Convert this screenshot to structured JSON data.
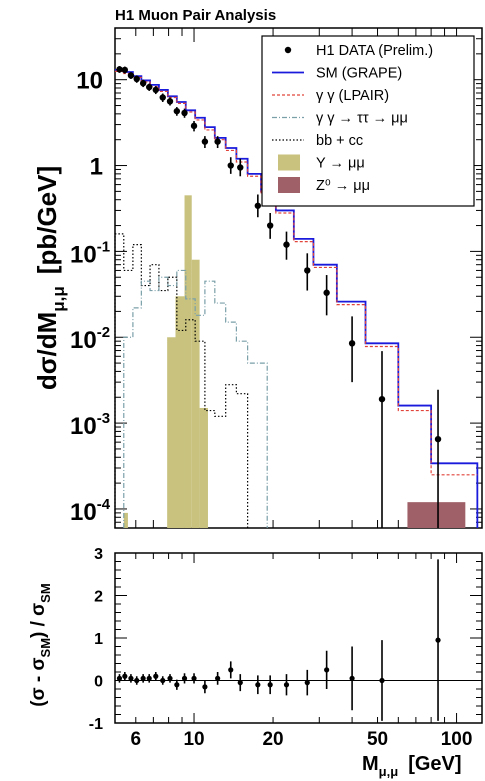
{
  "chart_data": [
    {
      "type": "histogram-with-points",
      "title": "H1 Muon Pair Analysis",
      "ylabel_main": "dσ/dM",
      "ylabel_sub": "μ,μ",
      "ylabel_unit": "[pb/GeV]",
      "xlabel_main": "M",
      "xlabel_sub": "μ,μ",
      "xlabel_unit": "[GeV]",
      "x_scale": "log",
      "y_scale": "log",
      "xlim": [
        5,
        125
      ],
      "ylim": [
        6e-05,
        40
      ],
      "y_ticks": [
        {
          "value": 10,
          "label": "10"
        },
        {
          "value": 1,
          "label": "1"
        },
        {
          "value": 0.1,
          "base": "10",
          "exp": "-1"
        },
        {
          "value": 0.01,
          "base": "10",
          "exp": "-2"
        },
        {
          "value": 0.001,
          "base": "10",
          "exp": "-3"
        },
        {
          "value": 0.0001,
          "base": "10",
          "exp": "-4"
        }
      ],
      "legend_position": "top-right",
      "legend": [
        {
          "key": "data",
          "label": "H1 DATA (Prelim.)",
          "color": "#000000"
        },
        {
          "key": "sm",
          "label": "SM (GRAPE)",
          "color": "#1a1adc"
        },
        {
          "key": "lpair",
          "label": "γ γ (LPAIR)",
          "color": "#e0443a"
        },
        {
          "key": "tautau",
          "label": "γ γ → ττ → μμ",
          "color": "#7a9fa8"
        },
        {
          "key": "bbcc",
          "label": "bb + cc",
          "color": "#000000"
        },
        {
          "key": "upsilon",
          "label": "Υ → μμ",
          "color": "#c8c27e"
        },
        {
          "key": "z0",
          "label": "Z⁰ → μμ",
          "color": "#a06068"
        }
      ],
      "series": {
        "data": {
          "x": [
            5.2,
            5.45,
            5.75,
            6.05,
            6.4,
            6.75,
            7.15,
            7.6,
            8.1,
            8.6,
            9.2,
            10.0,
            11.0,
            12.3,
            13.8,
            15.0,
            17.5,
            19.5,
            22.5,
            27.0,
            32.0,
            40.0,
            52.0,
            85.0
          ],
          "y": [
            13.2,
            13.0,
            11.2,
            10.2,
            9.1,
            8.2,
            7.6,
            6.2,
            5.6,
            4.3,
            4.1,
            2.9,
            1.9,
            1.9,
            1.0,
            0.95,
            0.34,
            0.2,
            0.12,
            0.06,
            0.033,
            0.0085,
            0.0019,
            0.00065
          ],
          "err_lo": [
            1.2,
            1.2,
            1.0,
            1.0,
            0.9,
            0.8,
            0.8,
            0.7,
            0.6,
            0.5,
            0.5,
            0.4,
            0.3,
            0.3,
            0.2,
            0.2,
            0.09,
            0.06,
            0.04,
            0.025,
            0.015,
            0.0055,
            0.0019,
            0.00065
          ],
          "err_hi": [
            1.2,
            1.2,
            1.0,
            1.0,
            0.9,
            0.8,
            0.8,
            0.7,
            0.6,
            0.5,
            0.5,
            0.4,
            0.3,
            0.3,
            0.25,
            0.25,
            0.12,
            0.08,
            0.05,
            0.035,
            0.02,
            0.009,
            0.005,
            0.0018
          ]
        },
        "sm_edges": [
          5.0,
          5.4,
          5.85,
          6.3,
          6.8,
          7.35,
          7.95,
          8.6,
          9.3,
          10.1,
          11.0,
          12.0,
          13.2,
          14.5,
          16.0,
          18.0,
          20.5,
          24.0,
          28.5,
          35.0,
          45.0,
          60.0,
          80.0,
          120.0
        ],
        "sm_values": [
          13.0,
          12.3,
          11.0,
          9.8,
          8.7,
          7.6,
          6.4,
          5.5,
          4.4,
          3.6,
          2.8,
          2.1,
          1.6,
          1.2,
          0.8,
          0.5,
          0.3,
          0.14,
          0.07,
          0.026,
          0.0085,
          0.0016,
          0.00034
        ],
        "lpair_values": [
          12.5,
          11.8,
          10.6,
          9.4,
          8.3,
          7.3,
          6.2,
          5.3,
          4.2,
          3.4,
          2.6,
          2.0,
          1.5,
          1.1,
          0.75,
          0.47,
          0.28,
          0.13,
          0.065,
          0.024,
          0.0078,
          0.0014,
          0.00025
        ],
        "tautau_edges": [
          5.4,
          5.85,
          6.3,
          6.8,
          7.35,
          7.95,
          8.6,
          9.3,
          10.1,
          11.0,
          12.0,
          13.2,
          14.5,
          16.0,
          18.0,
          19.0
        ],
        "tautau_values": [
          0.01,
          0.022,
          0.045,
          0.035,
          0.05,
          0.04,
          0.06,
          0.028,
          0.018,
          0.045,
          0.025,
          0.015,
          0.009,
          0.005,
          0.005
        ],
        "bbcc_edges": [
          5.0,
          5.4,
          5.85,
          6.3,
          6.8,
          7.35,
          7.95,
          8.6,
          9.3,
          10.1,
          11.0,
          12.0,
          13.2,
          14.5,
          16.0
        ],
        "bbcc_values": [
          0.16,
          0.06,
          0.12,
          0.04,
          0.07,
          0.035,
          0.05,
          0.012,
          0.016,
          0.009,
          0.0014,
          0.0012,
          0.0028,
          0.0022
        ],
        "upsilon_edges": [
          5.4,
          5.6,
          7.9,
          8.5,
          9.2,
          9.8,
          10.5,
          11.3
        ],
        "upsilon_values": [
          9e-05,
          0.0,
          0.01,
          0.03,
          0.45,
          0.08,
          0.0015
        ],
        "z0_edges": [
          65.0,
          108.0
        ],
        "z0_values": [
          0.00012
        ]
      }
    },
    {
      "type": "ratio",
      "ylabel_main": "(σ - σ",
      "ylabel_sub1": "SM",
      "ylabel_mid": ") / σ",
      "ylabel_sub2": "SM",
      "xlabel_main": "M",
      "xlabel_sub": "μ,μ",
      "xlabel_unit": "[GeV]",
      "x_scale": "log",
      "xlim": [
        5,
        125
      ],
      "ylim": [
        -1,
        3
      ],
      "y_ticks": [
        "-1",
        "0",
        "1",
        "2",
        "3"
      ],
      "x_ticks": [
        {
          "value": 6,
          "label": "6"
        },
        {
          "value": 10,
          "label": "10"
        },
        {
          "value": 20,
          "label": "20"
        },
        {
          "value": 50,
          "label": "50"
        },
        {
          "value": 100,
          "label": "100"
        }
      ],
      "points": {
        "x": [
          5.2,
          5.45,
          5.75,
          6.05,
          6.4,
          6.75,
          7.15,
          7.6,
          8.1,
          8.6,
          9.2,
          10.0,
          11.0,
          12.3,
          13.8,
          15.0,
          17.5,
          19.5,
          22.5,
          27.0,
          32.0,
          40.0,
          52.0,
          85.0
        ],
        "y": [
          0.05,
          0.1,
          0.05,
          0.0,
          0.05,
          0.05,
          0.1,
          0.0,
          0.05,
          -0.1,
          0.05,
          0.05,
          -0.15,
          0.05,
          0.25,
          -0.05,
          -0.1,
          -0.1,
          -0.1,
          -0.05,
          0.25,
          0.05,
          0.0,
          0.95
        ],
        "err": [
          0.1,
          0.1,
          0.1,
          0.1,
          0.1,
          0.1,
          0.1,
          0.1,
          0.1,
          0.12,
          0.12,
          0.12,
          0.15,
          0.15,
          0.2,
          0.2,
          0.22,
          0.22,
          0.25,
          0.3,
          0.45,
          0.75,
          0.95,
          1.9
        ]
      }
    }
  ]
}
